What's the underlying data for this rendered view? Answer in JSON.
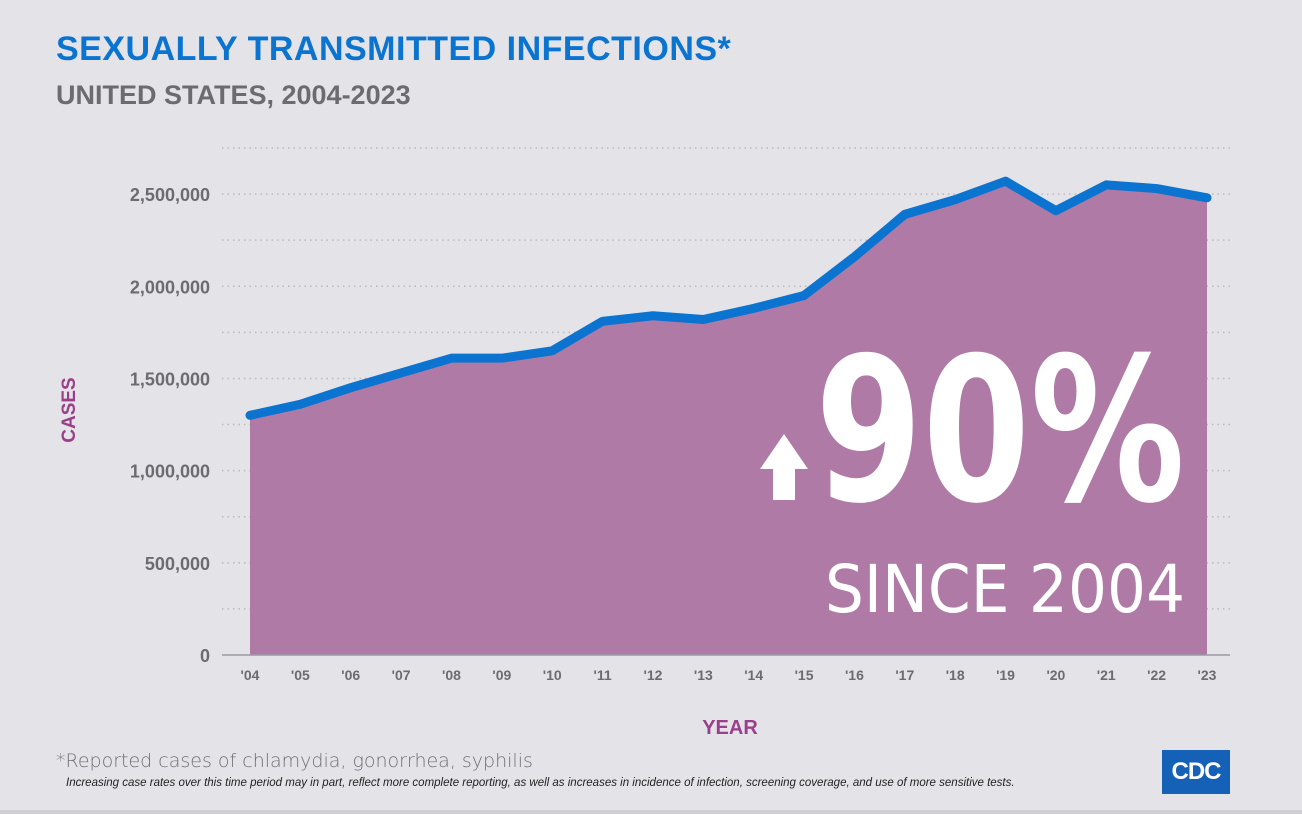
{
  "chart_data": {
    "type": "area",
    "title": "SEXUALLY TRANSMITTED INFECTIONS*",
    "subtitle": "UNITED STATES, 2004-2023",
    "xlabel": "YEAR",
    "ylabel": "CASES",
    "categories": [
      "'04",
      "'05",
      "'06",
      "'07",
      "'08",
      "'09",
      "'10",
      "'11",
      "'12",
      "'13",
      "'14",
      "'15",
      "'16",
      "'17",
      "'18",
      "'19",
      "'20",
      "'21",
      "'22",
      "'23"
    ],
    "values": [
      1300000,
      1360000,
      1450000,
      1530000,
      1610000,
      1610000,
      1650000,
      1810000,
      1840000,
      1820000,
      1880000,
      1950000,
      2160000,
      2390000,
      2470000,
      2570000,
      2410000,
      2550000,
      2530000,
      2480000
    ],
    "yticks": [
      0,
      500000,
      1000000,
      1500000,
      2000000,
      2500000
    ],
    "ytick_labels": [
      "0",
      "500,000",
      "1,000,000",
      "1,500,000",
      "2,000,000",
      "2,500,000"
    ],
    "ylim": [
      0,
      2750000
    ],
    "grid": "horizontal dotted",
    "annotation": {
      "arrow": "up-arrow-icon",
      "value": "90%",
      "text": "SINCE 2004"
    },
    "colors": {
      "fill": "#af7aa6",
      "line": "#0a74d0",
      "title": "#0a74d0",
      "axis_label": "#9b3f8a"
    }
  },
  "footer": {
    "footnote": "*Reported cases of chlamydia, gonorrhea, syphilis",
    "note": "Increasing case rates over this time period may in part, reflect more complete reporting, as well as increases in incidence of infection, screening coverage, and use of more sensitive tests.",
    "logo": "CDC"
  }
}
